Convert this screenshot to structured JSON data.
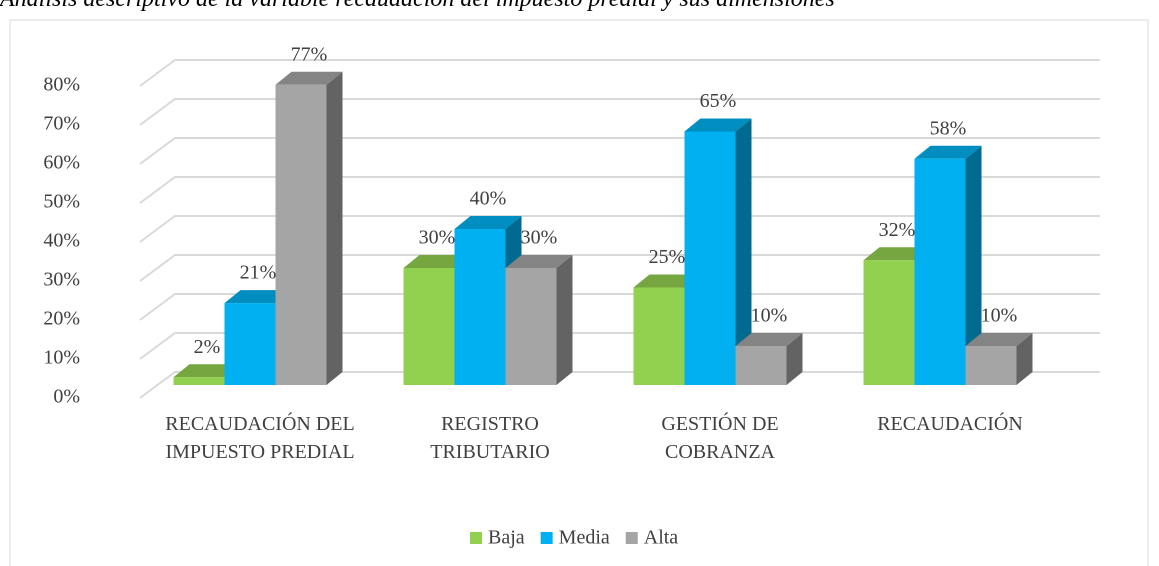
{
  "chart_data": {
    "type": "bar3d",
    "title": "Análisis descriptivo de la variable recaudación del impuesto predial y sus dimensiones",
    "categories": [
      "RECAUDACIÓN DEL IMPUESTO PREDIAL",
      "REGISTRO TRIBUTARIO",
      "GESTIÓN DE COBRANZA",
      "RECAUDACIÓN"
    ],
    "series": [
      {
        "name": "Baja",
        "color": "#92d050",
        "values": [
          2,
          30,
          25,
          32
        ],
        "value_labels": [
          "2%",
          "30%",
          "25%",
          "32%"
        ]
      },
      {
        "name": "Media",
        "color": "#00b0f0",
        "values": [
          21,
          40,
          65,
          58
        ],
        "value_labels": [
          "21%",
          "40%",
          "65%",
          "58%"
        ]
      },
      {
        "name": "Alta",
        "color": "#a5a5a5",
        "values": [
          77,
          30,
          10,
          10
        ],
        "value_labels": [
          "77%",
          "30%",
          "10%",
          "10%"
        ]
      }
    ],
    "ylim": [
      0,
      80
    ],
    "yticks": [
      {
        "value": 0,
        "label": "0%"
      },
      {
        "value": 10,
        "label": "10%"
      },
      {
        "value": 20,
        "label": "20%"
      },
      {
        "value": 30,
        "label": "30%"
      },
      {
        "value": 40,
        "label": "40%"
      },
      {
        "value": 50,
        "label": "50%"
      },
      {
        "value": 60,
        "label": "60%"
      },
      {
        "value": 70,
        "label": "70%"
      },
      {
        "value": 80,
        "label": "80%"
      }
    ],
    "grid": true,
    "legend": "bottom"
  }
}
